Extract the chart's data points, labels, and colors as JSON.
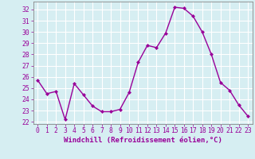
{
  "x": [
    0,
    1,
    2,
    3,
    4,
    5,
    6,
    7,
    8,
    9,
    10,
    11,
    12,
    13,
    14,
    15,
    16,
    17,
    18,
    19,
    20,
    21,
    22,
    23
  ],
  "y": [
    25.7,
    24.5,
    24.7,
    22.2,
    25.4,
    24.4,
    23.4,
    22.9,
    22.9,
    23.1,
    24.6,
    27.3,
    28.8,
    28.6,
    29.9,
    32.2,
    32.1,
    31.4,
    30.0,
    28.0,
    25.5,
    24.8,
    23.5,
    22.5
  ],
  "line_color": "#990099",
  "marker": "D",
  "marker_size": 2.0,
  "linewidth": 1.0,
  "xlabel": "Windchill (Refroidissement éolien,°C)",
  "xlabel_fontsize": 6.5,
  "ylabel_ticks": [
    22,
    23,
    24,
    25,
    26,
    27,
    28,
    29,
    30,
    31,
    32
  ],
  "xtick_labels": [
    "0",
    "1",
    "2",
    "3",
    "4",
    "5",
    "6",
    "7",
    "8",
    "9",
    "10",
    "11",
    "12",
    "13",
    "14",
    "15",
    "16",
    "17",
    "18",
    "19",
    "20",
    "21",
    "22",
    "23"
  ],
  "ylim": [
    21.8,
    32.7
  ],
  "xlim": [
    -0.5,
    23.5
  ],
  "bg_color": "#d6eef2",
  "grid_color": "#b8d8e0",
  "tick_color": "#990099",
  "label_color": "#990099",
  "tick_fontsize": 5.8,
  "spine_color": "#888888"
}
